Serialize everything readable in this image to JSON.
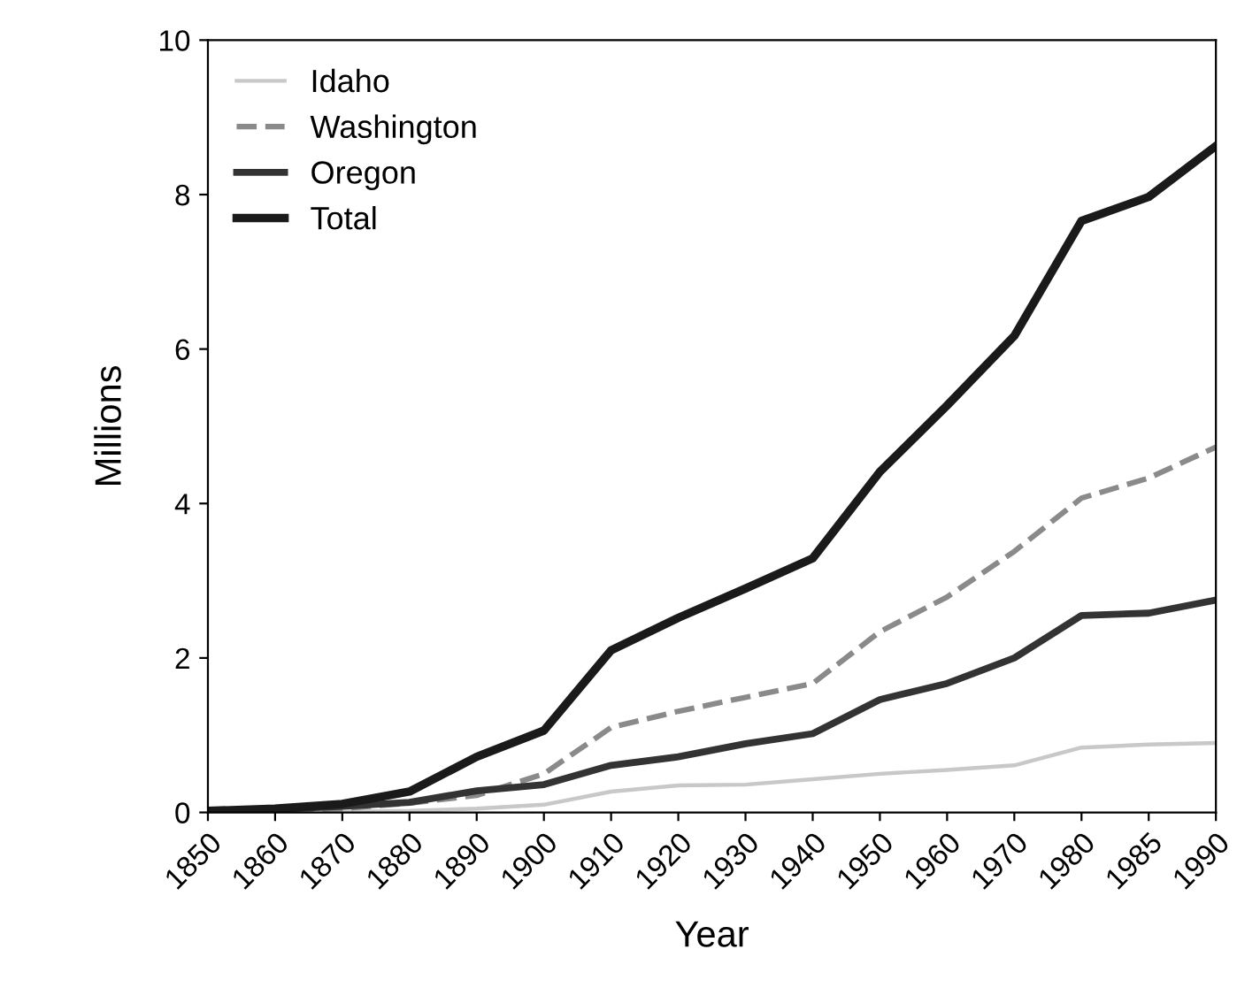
{
  "chart_data": {
    "type": "line",
    "xlabel": "Year",
    "ylabel": "Millions",
    "categories": [
      "1850",
      "1860",
      "1870",
      "1880",
      "1890",
      "1900",
      "1910",
      "1920",
      "1930",
      "1940",
      "1950",
      "1960",
      "1970",
      "1980",
      "1985",
      "1990"
    ],
    "series": [
      {
        "name": "Idaho",
        "color": "#c8c8c8",
        "line_style": "solid",
        "values": [
          0,
          0,
          0.01,
          0.02,
          0.05,
          0.1,
          0.27,
          0.35,
          0.36,
          0.43,
          0.5,
          0.55,
          0.61,
          0.84,
          0.88,
          0.9
        ]
      },
      {
        "name": "Washington",
        "color": "#8a8a8a",
        "line_style": "dashed",
        "values": [
          0.01,
          0.02,
          0.05,
          0.12,
          0.22,
          0.5,
          1.1,
          1.31,
          1.49,
          1.67,
          2.34,
          2.79,
          3.38,
          4.07,
          4.33,
          4.73
        ]
      },
      {
        "name": "Oregon",
        "color": "#333333",
        "line_style": "solid",
        "values": [
          0.01,
          0.04,
          0.08,
          0.13,
          0.28,
          0.36,
          0.61,
          0.72,
          0.89,
          1.02,
          1.46,
          1.67,
          2.0,
          2.55,
          2.58,
          2.75
        ]
      },
      {
        "name": "Total",
        "color": "#1a1a1a",
        "line_style": "solid",
        "values": [
          0.02,
          0.05,
          0.11,
          0.27,
          0.72,
          1.06,
          2.1,
          2.52,
          2.9,
          3.29,
          4.41,
          5.27,
          6.17,
          7.66,
          7.97,
          8.63
        ]
      }
    ],
    "ylim": [
      0,
      10
    ],
    "yticks": [
      0,
      2,
      4,
      6,
      8,
      10
    ],
    "grid": false,
    "legend": "top left",
    "marker": "none"
  }
}
